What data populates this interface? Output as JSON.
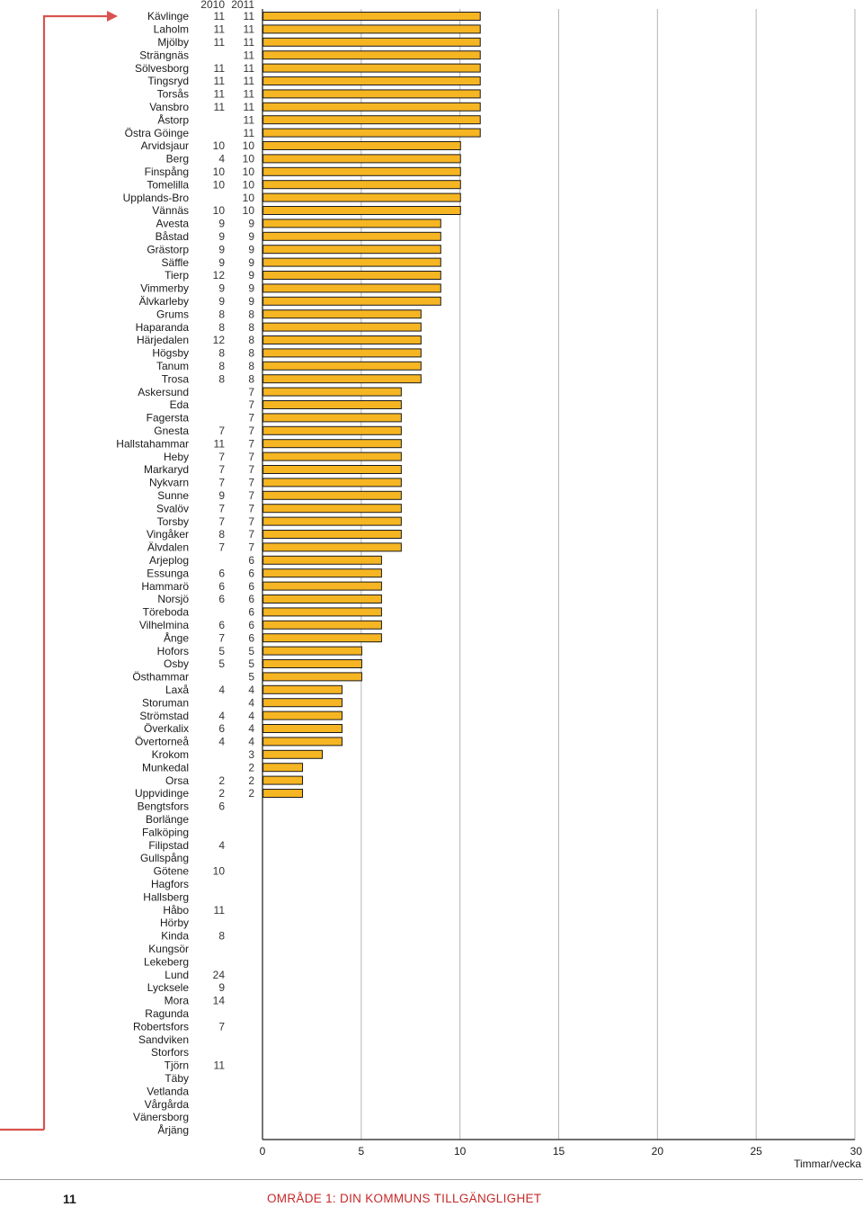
{
  "chart_data": {
    "type": "bar",
    "orientation": "horizontal",
    "columns": [
      "2010",
      "2011"
    ],
    "xlim": [
      0,
      30
    ],
    "xticks": [
      0,
      5,
      10,
      15,
      20,
      25,
      30
    ],
    "xlabel": "Timmar/vecka",
    "grid": true,
    "bar_color": "#f6b522",
    "bar_edge_color": "#1a1a1a",
    "arrow_color": "#d9534f",
    "rows": [
      {
        "name": "Kävlinge",
        "y2010": "11",
        "y2011": "11",
        "value": 11
      },
      {
        "name": "Laholm",
        "y2010": "11",
        "y2011": "11",
        "value": 11
      },
      {
        "name": "Mjölby",
        "y2010": "11",
        "y2011": "11",
        "value": 11
      },
      {
        "name": "Strängnäs",
        "y2010": "",
        "y2011": "11",
        "value": 11
      },
      {
        "name": "Sölvesborg",
        "y2010": "11",
        "y2011": "11",
        "value": 11
      },
      {
        "name": "Tingsryd",
        "y2010": "11",
        "y2011": "11",
        "value": 11
      },
      {
        "name": "Torsås",
        "y2010": "11",
        "y2011": "11",
        "value": 11
      },
      {
        "name": "Vansbro",
        "y2010": "11",
        "y2011": "11",
        "value": 11
      },
      {
        "name": "Åstorp",
        "y2010": "",
        "y2011": "11",
        "value": 11
      },
      {
        "name": "Östra Göinge",
        "y2010": "",
        "y2011": "11",
        "value": 11
      },
      {
        "name": "Arvidsjaur",
        "y2010": "10",
        "y2011": "10",
        "value": 10
      },
      {
        "name": "Berg",
        "y2010": "4",
        "y2011": "10",
        "value": 10
      },
      {
        "name": "Finspång",
        "y2010": "10",
        "y2011": "10",
        "value": 10
      },
      {
        "name": "Tomelilla",
        "y2010": "10",
        "y2011": "10",
        "value": 10
      },
      {
        "name": "Upplands-Bro",
        "y2010": "",
        "y2011": "10",
        "value": 10
      },
      {
        "name": "Vännäs",
        "y2010": "10",
        "y2011": "10",
        "value": 10
      },
      {
        "name": "Avesta",
        "y2010": "9",
        "y2011": "9",
        "value": 9
      },
      {
        "name": "Båstad",
        "y2010": "9",
        "y2011": "9",
        "value": 9
      },
      {
        "name": "Grästorp",
        "y2010": "9",
        "y2011": "9",
        "value": 9
      },
      {
        "name": "Säffle",
        "y2010": "9",
        "y2011": "9",
        "value": 9
      },
      {
        "name": "Tierp",
        "y2010": "12",
        "y2011": "9",
        "value": 9
      },
      {
        "name": "Vimmerby",
        "y2010": "9",
        "y2011": "9",
        "value": 9
      },
      {
        "name": "Älvkarleby",
        "y2010": "9",
        "y2011": "9",
        "value": 9
      },
      {
        "name": "Grums",
        "y2010": "8",
        "y2011": "8",
        "value": 8
      },
      {
        "name": "Haparanda",
        "y2010": "8",
        "y2011": "8",
        "value": 8
      },
      {
        "name": "Härjedalen",
        "y2010": "12",
        "y2011": "8",
        "value": 8
      },
      {
        "name": "Högsby",
        "y2010": "8",
        "y2011": "8",
        "value": 8
      },
      {
        "name": "Tanum",
        "y2010": "8",
        "y2011": "8",
        "value": 8
      },
      {
        "name": "Trosa",
        "y2010": "8",
        "y2011": "8",
        "value": 8
      },
      {
        "name": "Askersund",
        "y2010": "",
        "y2011": "7",
        "value": 7
      },
      {
        "name": "Eda",
        "y2010": "",
        "y2011": "7",
        "value": 7
      },
      {
        "name": "Fagersta",
        "y2010": "",
        "y2011": "7",
        "value": 7
      },
      {
        "name": "Gnesta",
        "y2010": "7",
        "y2011": "7",
        "value": 7
      },
      {
        "name": "Hallstahammar",
        "y2010": "11",
        "y2011": "7",
        "value": 7
      },
      {
        "name": "Heby",
        "y2010": "7",
        "y2011": "7",
        "value": 7
      },
      {
        "name": "Markaryd",
        "y2010": "7",
        "y2011": "7",
        "value": 7
      },
      {
        "name": "Nykvarn",
        "y2010": "7",
        "y2011": "7",
        "value": 7
      },
      {
        "name": "Sunne",
        "y2010": "9",
        "y2011": "7",
        "value": 7
      },
      {
        "name": "Svalöv",
        "y2010": "7",
        "y2011": "7",
        "value": 7
      },
      {
        "name": "Torsby",
        "y2010": "7",
        "y2011": "7",
        "value": 7
      },
      {
        "name": "Vingåker",
        "y2010": "8",
        "y2011": "7",
        "value": 7
      },
      {
        "name": "Älvdalen",
        "y2010": "7",
        "y2011": "7",
        "value": 7
      },
      {
        "name": "Arjeplog",
        "y2010": "",
        "y2011": "6",
        "value": 6
      },
      {
        "name": "Essunga",
        "y2010": "6",
        "y2011": "6",
        "value": 6
      },
      {
        "name": "Hammarö",
        "y2010": "6",
        "y2011": "6",
        "value": 6
      },
      {
        "name": "Norsjö",
        "y2010": "6",
        "y2011": "6",
        "value": 6
      },
      {
        "name": "Töreboda",
        "y2010": "",
        "y2011": "6",
        "value": 6
      },
      {
        "name": "Vilhelmina",
        "y2010": "6",
        "y2011": "6",
        "value": 6
      },
      {
        "name": "Ånge",
        "y2010": "7",
        "y2011": "6",
        "value": 6
      },
      {
        "name": "Hofors",
        "y2010": "5",
        "y2011": "5",
        "value": 5
      },
      {
        "name": "Osby",
        "y2010": "5",
        "y2011": "5",
        "value": 5
      },
      {
        "name": "Östhammar",
        "y2010": "",
        "y2011": "5",
        "value": 5
      },
      {
        "name": "Laxå",
        "y2010": "4",
        "y2011": "4",
        "value": 4
      },
      {
        "name": "Storuman",
        "y2010": "",
        "y2011": "4",
        "value": 4
      },
      {
        "name": "Strömstad",
        "y2010": "4",
        "y2011": "4",
        "value": 4
      },
      {
        "name": "Överkalix",
        "y2010": "6",
        "y2011": "4",
        "value": 4
      },
      {
        "name": "Övertorneå",
        "y2010": "4",
        "y2011": "4",
        "value": 4
      },
      {
        "name": "Krokom",
        "y2010": "",
        "y2011": "3",
        "value": 3
      },
      {
        "name": "Munkedal",
        "y2010": "",
        "y2011": "2",
        "value": 2
      },
      {
        "name": "Orsa",
        "y2010": "2",
        "y2011": "2",
        "value": 2
      },
      {
        "name": "Uppvidinge",
        "y2010": "2",
        "y2011": "2",
        "value": 2
      },
      {
        "name": "Bengtsfors",
        "y2010": "6",
        "y2011": "",
        "value": 0
      },
      {
        "name": "Borlänge",
        "y2010": "",
        "y2011": "",
        "value": 0
      },
      {
        "name": "Falköping",
        "y2010": "",
        "y2011": "",
        "value": 0
      },
      {
        "name": "Filipstad",
        "y2010": "4",
        "y2011": "",
        "value": 0
      },
      {
        "name": "Gullspång",
        "y2010": "",
        "y2011": "",
        "value": 0
      },
      {
        "name": "Götene",
        "y2010": "10",
        "y2011": "",
        "value": 0
      },
      {
        "name": "Hagfors",
        "y2010": "",
        "y2011": "",
        "value": 0
      },
      {
        "name": "Hallsberg",
        "y2010": "",
        "y2011": "",
        "value": 0
      },
      {
        "name": "Håbo",
        "y2010": "11",
        "y2011": "",
        "value": 0
      },
      {
        "name": "Hörby",
        "y2010": "",
        "y2011": "",
        "value": 0
      },
      {
        "name": "Kinda",
        "y2010": "8",
        "y2011": "",
        "value": 0
      },
      {
        "name": "Kungsör",
        "y2010": "",
        "y2011": "",
        "value": 0
      },
      {
        "name": "Lekeberg",
        "y2010": "",
        "y2011": "",
        "value": 0
      },
      {
        "name": "Lund",
        "y2010": "24",
        "y2011": "",
        "value": 0
      },
      {
        "name": "Lycksele",
        "y2010": "9",
        "y2011": "",
        "value": 0
      },
      {
        "name": "Mora",
        "y2010": "14",
        "y2011": "",
        "value": 0
      },
      {
        "name": "Ragunda",
        "y2010": "",
        "y2011": "",
        "value": 0
      },
      {
        "name": "Robertsfors",
        "y2010": "7",
        "y2011": "",
        "value": 0
      },
      {
        "name": "Sandviken",
        "y2010": "",
        "y2011": "",
        "value": 0
      },
      {
        "name": "Storfors",
        "y2010": "",
        "y2011": "",
        "value": 0
      },
      {
        "name": "Tjörn",
        "y2010": "11",
        "y2011": "",
        "value": 0
      },
      {
        "name": "Täby",
        "y2010": "",
        "y2011": "",
        "value": 0
      },
      {
        "name": "Vetlanda",
        "y2010": "",
        "y2011": "",
        "value": 0
      },
      {
        "name": "Vårgårda",
        "y2010": "",
        "y2011": "",
        "value": 0
      },
      {
        "name": "Vänersborg",
        "y2010": "",
        "y2011": "",
        "value": 0
      },
      {
        "name": "Årjäng",
        "y2010": "",
        "y2011": "",
        "value": 0
      }
    ]
  },
  "footer": {
    "page_number": "11",
    "section_title": "OMRÅDE 1: DIN KOMMUNS TILLGÄNGLIGHET"
  }
}
